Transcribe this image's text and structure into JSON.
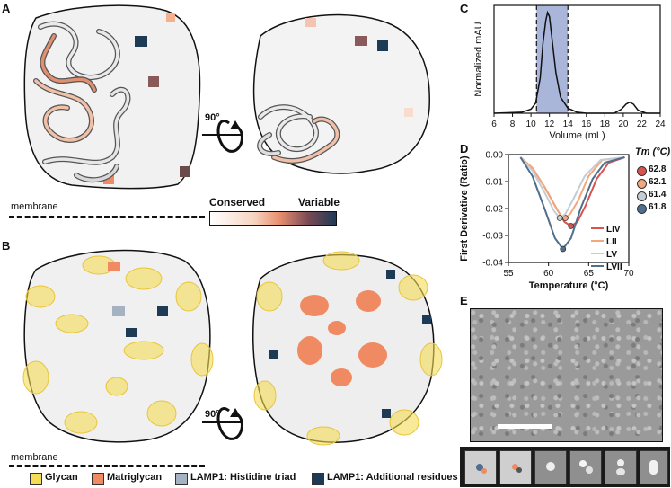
{
  "panels": {
    "a": "A",
    "b": "B",
    "c": "C",
    "d": "D",
    "e": "E"
  },
  "panel_a": {
    "membrane_label": "membrane",
    "rotation_label": "90°",
    "scale_left": "Conserved",
    "scale_right": "Variable"
  },
  "panel_b": {
    "membrane_label": "membrane",
    "rotation_label": "90°"
  },
  "legend": [
    {
      "label": "Glycan",
      "color": "#f5dc55"
    },
    {
      "label": "Matriglycan",
      "color": "#f08a63"
    },
    {
      "label": "LAMP1: Histidine triad",
      "color": "#a5b2c2"
    },
    {
      "label": "LAMP1: Additional residues",
      "color": "#1e3b55"
    }
  ],
  "tm_legend": {
    "title": "Tm (°C)",
    "items": [
      {
        "value": "62.8",
        "color": "#d9534f"
      },
      {
        "value": "62.1",
        "color": "#f2a77c"
      },
      {
        "value": "61.4",
        "color": "#c5cdd4"
      },
      {
        "value": "61.8",
        "color": "#4f6f8f"
      }
    ]
  },
  "chart_data": [
    {
      "type": "line",
      "panel": "C",
      "xlabel": "Volume (mL)",
      "ylabel": "Normalized mAU",
      "xlim": [
        6,
        24
      ],
      "xticks": [
        "6",
        "8",
        "10",
        "12",
        "14",
        "16",
        "18",
        "20",
        "22",
        "24"
      ],
      "highlight_range": [
        10.6,
        14.0
      ],
      "series": [
        {
          "x": [
            6,
            9,
            10,
            10.5,
            11,
            11.3,
            11.6,
            11.8,
            12.0,
            12.3,
            12.7,
            13.2,
            14,
            15,
            16,
            19,
            19.8,
            20.3,
            20.7,
            21.1,
            21.6,
            22.5,
            24
          ],
          "y": [
            0,
            0.01,
            0.04,
            0.1,
            0.35,
            0.7,
            0.92,
            1.0,
            0.96,
            0.72,
            0.4,
            0.16,
            0.05,
            0.01,
            0,
            0,
            0.04,
            0.09,
            0.11,
            0.09,
            0.03,
            0,
            0
          ]
        }
      ]
    },
    {
      "type": "line",
      "panel": "D",
      "xlabel": "Temperature (°C)",
      "ylabel": "First Derivative (Ratio)",
      "xlim": [
        55,
        70
      ],
      "ylim": [
        -0.04,
        0.0
      ],
      "xticks": [
        "55",
        "60",
        "65",
        "70"
      ],
      "yticks": [
        "0.00",
        "-0.01",
        "-0.02",
        "-0.03",
        "-0.04"
      ],
      "series": [
        {
          "name": "LIV",
          "color": "#d9534f",
          "min": [
            62.8,
            -0.0265
          ],
          "x": [
            56.5,
            58,
            59.5,
            61,
            62,
            62.8,
            63.6,
            64.6,
            66,
            67.5,
            69.5
          ],
          "y": [
            -0.001,
            -0.005,
            -0.012,
            -0.02,
            -0.025,
            -0.0265,
            -0.025,
            -0.019,
            -0.009,
            -0.003,
            -0.001
          ]
        },
        {
          "name": "LII",
          "color": "#f2a77c",
          "min": [
            62.1,
            -0.0235
          ],
          "x": [
            56.5,
            58,
            59.5,
            61,
            61.6,
            62.1,
            62.7,
            63.7,
            65,
            66.7,
            69.5
          ],
          "y": [
            -0.001,
            -0.005,
            -0.012,
            -0.02,
            -0.023,
            -0.0235,
            -0.022,
            -0.017,
            -0.008,
            -0.002,
            -0.001
          ]
        },
        {
          "name": "LV",
          "color": "#c5cdd4",
          "min": [
            61.4,
            -0.0235
          ],
          "x": [
            56.5,
            58,
            59.5,
            60.7,
            61.4,
            62.1,
            63,
            64.5,
            66.5,
            69.5
          ],
          "y": [
            -0.001,
            -0.006,
            -0.014,
            -0.021,
            -0.0235,
            -0.022,
            -0.017,
            -0.008,
            -0.002,
            -0.001
          ]
        },
        {
          "name": "LVII",
          "color": "#4f6f8f",
          "min": [
            61.8,
            -0.035
          ],
          "x": [
            56.5,
            58,
            59.5,
            60.8,
            61.8,
            62.8,
            64,
            65.5,
            67,
            69.5
          ],
          "y": [
            -0.001,
            -0.008,
            -0.02,
            -0.031,
            -0.035,
            -0.031,
            -0.02,
            -0.009,
            -0.003,
            -0.001
          ]
        }
      ]
    }
  ]
}
